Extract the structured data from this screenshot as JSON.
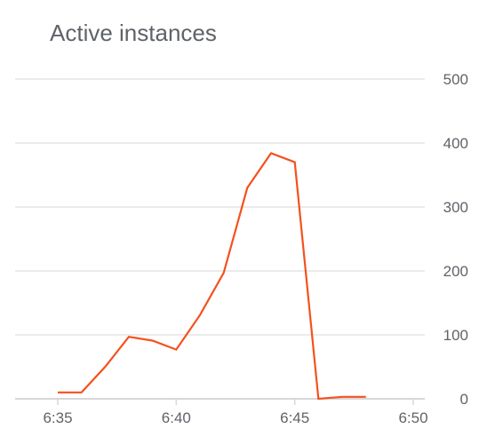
{
  "chart_data": {
    "type": "line",
    "title": "Active instances",
    "xlabel": "",
    "ylabel": "",
    "x_ticks": [
      "6:35",
      "6:40",
      "6:45",
      "6:50"
    ],
    "x_tick_minutes": [
      35,
      40,
      45,
      50
    ],
    "xlim": [
      34.25,
      50.5
    ],
    "y_ticks": [
      0,
      100,
      200,
      300,
      400,
      500
    ],
    "ylim": [
      0,
      500
    ],
    "y_axis_position": "right",
    "grid": true,
    "series": [
      {
        "color": "#f4511e",
        "x": [
          35,
          36,
          37,
          38,
          39,
          40,
          41,
          42,
          43,
          44,
          45,
          46,
          47,
          48
        ],
        "values": [
          10,
          10,
          50,
          97,
          91,
          77,
          131,
          197,
          330,
          384,
          370,
          0,
          3,
          3
        ]
      }
    ]
  }
}
